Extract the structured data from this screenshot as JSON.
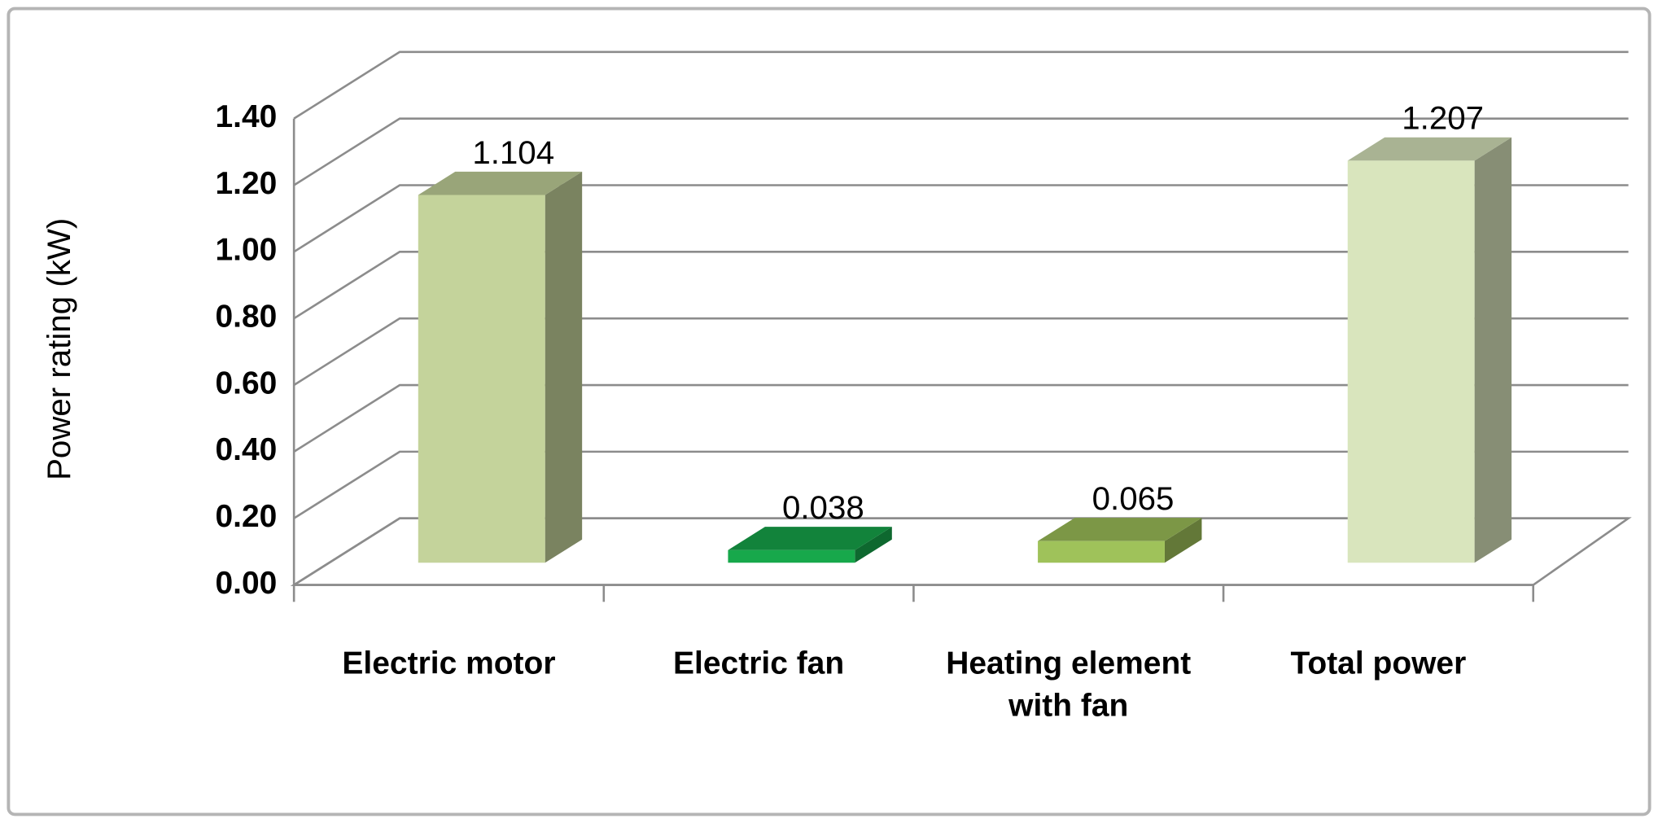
{
  "chart_data": {
    "type": "bar3d",
    "y_label": "Power rating (kW)",
    "categories": [
      "Electric motor",
      "Electric fan",
      "Heating element with fan",
      "Total power"
    ],
    "values": [
      1.104,
      0.038,
      0.065,
      1.207
    ],
    "colors": [
      "#c4d39b",
      "#17a84b",
      "#9fc25a",
      "#d9e5bd"
    ],
    "ylim": [
      0,
      1.4
    ],
    "yticks": [
      {
        "value": 0,
        "label": "0.00"
      },
      {
        "value": 0.2,
        "label": "0.20"
      },
      {
        "value": 0.4,
        "label": "0.40"
      },
      {
        "value": 0.6,
        "label": "0.60"
      },
      {
        "value": 0.8,
        "label": "0.80"
      },
      {
        "value": 1.0,
        "label": "1.00"
      },
      {
        "value": 1.2,
        "label": "1.20"
      },
      {
        "value": 1.4,
        "label": "1.40"
      }
    ],
    "grid": true
  }
}
